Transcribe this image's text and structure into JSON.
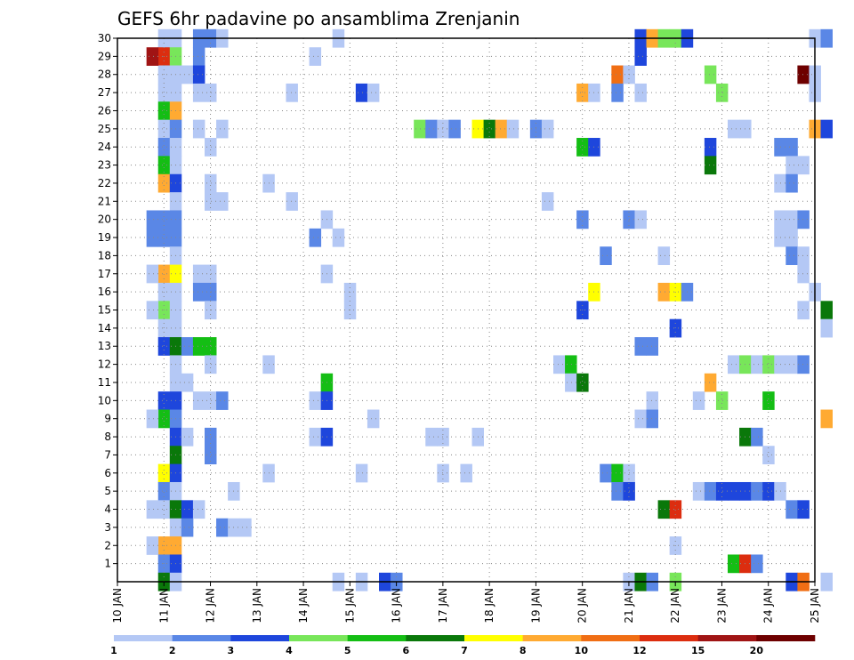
{
  "chart_data": {
    "type": "heatmap",
    "title": "GEFS 6hr padavine po ansamblima Zrenjanin",
    "xlabel": "",
    "ylabel": "",
    "x_ticks": [
      "10 JAN",
      "11 JAN",
      "12 JAN",
      "13 JAN",
      "14 JAN",
      "15 JAN",
      "16 JAN",
      "17 JAN",
      "18 JAN",
      "19 JAN",
      "20 JAN",
      "21 JAN",
      "22 JAN",
      "23 JAN",
      "24 JAN",
      "25 JAN"
    ],
    "y_ticks": [
      "1",
      "2",
      "3",
      "4",
      "5",
      "6",
      "7",
      "8",
      "9",
      "10",
      "11",
      "12",
      "13",
      "14",
      "15",
      "16",
      "17",
      "18",
      "19",
      "20",
      "21",
      "22",
      "23",
      "24",
      "25",
      "26",
      "27",
      "28",
      "29",
      "30"
    ],
    "x_range_days": [
      10.0,
      25.0
    ],
    "y_range": [
      0,
      30
    ],
    "grid": true,
    "colorbar": {
      "levels": [
        "1",
        "2",
        "3",
        "4",
        "5",
        "6",
        "7",
        "8",
        "10",
        "12",
        "15",
        "20"
      ],
      "colors": [
        "#b4c8f5",
        "#5a87e6",
        "#1e46dc",
        "#78e65a",
        "#14be14",
        "#0a780a",
        "#ffff00",
        "#ffaa32",
        "#f06e14",
        "#dc2d0f",
        "#a01414",
        "#6e0000"
      ]
    },
    "cells": [
      [
        11.0,
        30,
        0
      ],
      [
        11.0,
        29,
        9
      ],
      [
        11.0,
        28,
        0
      ],
      [
        11.0,
        27,
        0
      ],
      [
        11.0,
        26,
        4
      ],
      [
        11.0,
        25,
        0
      ],
      [
        11.0,
        24,
        1
      ],
      [
        11.0,
        23,
        4
      ],
      [
        11.0,
        22,
        7
      ],
      [
        11.0,
        20,
        1
      ],
      [
        11.0,
        19,
        1
      ],
      [
        11.0,
        17,
        7
      ],
      [
        11.0,
        16,
        0
      ],
      [
        11.0,
        15,
        3
      ],
      [
        11.0,
        14,
        0
      ],
      [
        11.0,
        13,
        2
      ],
      [
        11.0,
        10,
        2
      ],
      [
        11.0,
        9,
        4
      ],
      [
        11.0,
        6,
        6
      ],
      [
        11.0,
        5,
        1
      ],
      [
        11.0,
        4,
        0
      ],
      [
        11.0,
        2,
        7
      ],
      [
        11.0,
        1,
        1
      ],
      [
        11.0,
        0,
        5
      ],
      [
        10.75,
        29,
        10
      ],
      [
        10.75,
        20,
        1
      ],
      [
        10.75,
        19,
        1
      ],
      [
        10.75,
        17,
        0
      ],
      [
        10.75,
        15,
        0
      ],
      [
        10.75,
        9,
        0
      ],
      [
        10.75,
        4,
        0
      ],
      [
        10.75,
        2,
        0
      ],
      [
        11.25,
        30,
        0
      ],
      [
        11.25,
        29,
        3
      ],
      [
        11.25,
        28,
        0
      ],
      [
        11.25,
        27,
        0
      ],
      [
        11.25,
        26,
        7
      ],
      [
        11.25,
        25,
        1
      ],
      [
        11.25,
        24,
        0
      ],
      [
        11.25,
        23,
        0
      ],
      [
        11.25,
        22,
        2
      ],
      [
        11.25,
        21,
        0
      ],
      [
        11.25,
        20,
        1
      ],
      [
        11.25,
        19,
        1
      ],
      [
        11.25,
        18,
        0
      ],
      [
        11.25,
        17,
        6
      ],
      [
        11.25,
        16,
        0
      ],
      [
        11.25,
        15,
        0
      ],
      [
        11.25,
        14,
        0
      ],
      [
        11.25,
        13,
        5
      ],
      [
        11.25,
        12,
        0
      ],
      [
        11.25,
        11,
        0
      ],
      [
        11.25,
        10,
        2
      ],
      [
        11.25,
        9,
        1
      ],
      [
        11.25,
        8,
        2
      ],
      [
        11.25,
        7,
        5
      ],
      [
        11.25,
        6,
        2
      ],
      [
        11.25,
        5,
        0
      ],
      [
        11.25,
        4,
        5
      ],
      [
        11.25,
        3,
        0
      ],
      [
        11.25,
        2,
        7
      ],
      [
        11.25,
        1,
        2
      ],
      [
        11.25,
        0,
        0
      ],
      [
        11.5,
        28,
        0
      ],
      [
        11.5,
        13,
        1
      ],
      [
        11.5,
        11,
        0
      ],
      [
        11.5,
        8,
        0
      ],
      [
        11.5,
        4,
        2
      ],
      [
        11.5,
        3,
        1
      ],
      [
        11.75,
        30,
        1
      ],
      [
        11.75,
        29,
        1
      ],
      [
        11.75,
        28,
        2
      ],
      [
        11.75,
        27,
        0
      ],
      [
        11.75,
        25,
        0
      ],
      [
        11.75,
        17,
        0
      ],
      [
        11.75,
        16,
        1
      ],
      [
        11.75,
        13,
        4
      ],
      [
        11.75,
        10,
        0
      ],
      [
        11.75,
        4,
        0
      ],
      [
        12.0,
        30,
        1
      ],
      [
        12.0,
        27,
        0
      ],
      [
        12.0,
        24,
        0
      ],
      [
        12.0,
        22,
        0
      ],
      [
        12.0,
        21,
        0
      ],
      [
        12.0,
        17,
        0
      ],
      [
        12.0,
        16,
        1
      ],
      [
        12.0,
        15,
        0
      ],
      [
        12.0,
        13,
        4
      ],
      [
        12.0,
        12,
        0
      ],
      [
        12.0,
        10,
        0
      ],
      [
        12.0,
        8,
        1
      ],
      [
        12.0,
        7,
        1
      ],
      [
        12.25,
        30,
        0
      ],
      [
        12.25,
        25,
        0
      ],
      [
        12.25,
        21,
        0
      ],
      [
        12.25,
        10,
        1
      ],
      [
        12.25,
        3,
        1
      ],
      [
        12.5,
        5,
        0
      ],
      [
        12.5,
        3,
        0
      ],
      [
        12.75,
        3,
        0
      ],
      [
        13.25,
        22,
        0
      ],
      [
        13.25,
        12,
        0
      ],
      [
        13.25,
        6,
        0
      ],
      [
        13.75,
        27,
        0
      ],
      [
        13.75,
        21,
        0
      ],
      [
        14.25,
        29,
        0
      ],
      [
        14.25,
        19,
        1
      ],
      [
        14.25,
        10,
        0
      ],
      [
        14.25,
        8,
        0
      ],
      [
        14.5,
        20,
        0
      ],
      [
        14.5,
        17,
        0
      ],
      [
        14.5,
        11,
        4
      ],
      [
        14.5,
        10,
        2
      ],
      [
        14.5,
        8,
        2
      ],
      [
        14.75,
        30,
        0
      ],
      [
        14.75,
        19,
        0
      ],
      [
        14.75,
        0,
        0
      ],
      [
        15.0,
        16,
        0
      ],
      [
        15.0,
        15,
        0
      ],
      [
        15.25,
        27,
        2
      ],
      [
        15.25,
        6,
        0
      ],
      [
        15.25,
        0,
        0
      ],
      [
        15.5,
        27,
        0
      ],
      [
        15.5,
        9,
        0
      ],
      [
        15.75,
        0,
        2
      ],
      [
        16.0,
        0,
        1
      ],
      [
        16.5,
        25,
        3
      ],
      [
        16.75,
        25,
        1
      ],
      [
        16.75,
        8,
        0
      ],
      [
        17.0,
        25,
        0
      ],
      [
        17.0,
        8,
        0
      ],
      [
        17.0,
        6,
        0
      ],
      [
        17.25,
        25,
        1
      ],
      [
        17.5,
        6,
        0
      ],
      [
        17.75,
        25,
        6
      ],
      [
        17.75,
        8,
        0
      ],
      [
        18.0,
        25,
        5
      ],
      [
        18.25,
        25,
        7
      ],
      [
        18.5,
        25,
        0
      ],
      [
        19.0,
        25,
        1
      ],
      [
        19.25,
        25,
        0
      ],
      [
        19.25,
        21,
        0
      ],
      [
        19.5,
        12,
        0
      ],
      [
        19.75,
        12,
        4
      ],
      [
        19.75,
        11,
        0
      ],
      [
        20.0,
        27,
        7
      ],
      [
        20.0,
        24,
        4
      ],
      [
        20.0,
        20,
        1
      ],
      [
        20.0,
        15,
        2
      ],
      [
        20.0,
        11,
        5
      ],
      [
        20.25,
        27,
        0
      ],
      [
        20.25,
        24,
        2
      ],
      [
        20.25,
        16,
        6
      ],
      [
        20.5,
        18,
        1
      ],
      [
        20.5,
        6,
        1
      ],
      [
        20.75,
        28,
        8
      ],
      [
        20.75,
        27,
        1
      ],
      [
        20.75,
        6,
        4
      ],
      [
        20.75,
        5,
        1
      ],
      [
        21.0,
        28,
        0
      ],
      [
        21.0,
        20,
        1
      ],
      [
        21.0,
        6,
        0
      ],
      [
        21.0,
        5,
        2
      ],
      [
        21.0,
        0,
        0
      ],
      [
        21.25,
        30,
        2
      ],
      [
        21.25,
        29,
        2
      ],
      [
        21.25,
        27,
        0
      ],
      [
        21.25,
        20,
        0
      ],
      [
        21.25,
        13,
        1
      ],
      [
        21.25,
        9,
        0
      ],
      [
        21.25,
        0,
        5
      ],
      [
        21.5,
        30,
        7
      ],
      [
        21.5,
        13,
        1
      ],
      [
        21.5,
        10,
        0
      ],
      [
        21.5,
        9,
        1
      ],
      [
        21.5,
        0,
        1
      ],
      [
        21.75,
        30,
        3
      ],
      [
        21.75,
        18,
        0
      ],
      [
        21.75,
        16,
        7
      ],
      [
        21.75,
        4,
        5
      ],
      [
        22.0,
        30,
        3
      ],
      [
        22.0,
        16,
        6
      ],
      [
        22.0,
        14,
        2
      ],
      [
        22.0,
        4,
        9
      ],
      [
        22.0,
        2,
        0
      ],
      [
        22.0,
        0,
        3
      ],
      [
        22.25,
        30,
        2
      ],
      [
        22.25,
        16,
        1
      ],
      [
        22.5,
        10,
        0
      ],
      [
        22.5,
        5,
        0
      ],
      [
        22.75,
        28,
        3
      ],
      [
        22.75,
        24,
        2
      ],
      [
        22.75,
        23,
        5
      ],
      [
        22.75,
        11,
        7
      ],
      [
        22.75,
        5,
        1
      ],
      [
        23.0,
        27,
        3
      ],
      [
        23.0,
        10,
        3
      ],
      [
        23.0,
        5,
        2
      ],
      [
        23.25,
        25,
        0
      ],
      [
        23.25,
        12,
        0
      ],
      [
        23.25,
        5,
        2
      ],
      [
        23.25,
        1,
        4
      ],
      [
        23.5,
        25,
        0
      ],
      [
        23.5,
        12,
        3
      ],
      [
        23.5,
        8,
        5
      ],
      [
        23.5,
        5,
        2
      ],
      [
        23.5,
        1,
        9
      ],
      [
        23.75,
        12,
        0
      ],
      [
        23.75,
        8,
        1
      ],
      [
        23.75,
        5,
        1
      ],
      [
        23.75,
        1,
        1
      ],
      [
        24.0,
        12,
        3
      ],
      [
        24.0,
        10,
        4
      ],
      [
        24.0,
        7,
        0
      ],
      [
        24.0,
        5,
        2
      ],
      [
        24.25,
        24,
        1
      ],
      [
        24.25,
        22,
        0
      ],
      [
        24.25,
        20,
        0
      ],
      [
        24.25,
        19,
        0
      ],
      [
        24.25,
        12,
        0
      ],
      [
        24.25,
        5,
        0
      ],
      [
        24.5,
        24,
        1
      ],
      [
        24.5,
        23,
        0
      ],
      [
        24.5,
        22,
        1
      ],
      [
        24.5,
        20,
        0
      ],
      [
        24.5,
        19,
        0
      ],
      [
        24.5,
        18,
        1
      ],
      [
        24.5,
        12,
        0
      ],
      [
        24.5,
        4,
        1
      ],
      [
        24.5,
        0,
        2
      ],
      [
        24.75,
        23,
        0
      ],
      [
        24.75,
        20,
        1
      ],
      [
        24.75,
        18,
        0
      ],
      [
        24.75,
        28,
        11
      ],
      [
        24.75,
        17,
        0
      ],
      [
        24.75,
        15,
        0
      ],
      [
        24.75,
        12,
        1
      ],
      [
        24.75,
        4,
        2
      ],
      [
        24.75,
        0,
        8
      ],
      [
        25.0,
        30,
        0
      ],
      [
        25.0,
        28,
        0
      ],
      [
        25.0,
        27,
        0
      ],
      [
        25.0,
        25,
        7
      ],
      [
        25.0,
        16,
        0
      ],
      [
        25.25,
        30,
        1
      ],
      [
        25.25,
        25,
        2
      ],
      [
        25.25,
        15,
        5
      ],
      [
        25.25,
        14,
        0
      ],
      [
        25.25,
        9,
        7
      ],
      [
        25.25,
        0,
        0
      ]
    ]
  }
}
